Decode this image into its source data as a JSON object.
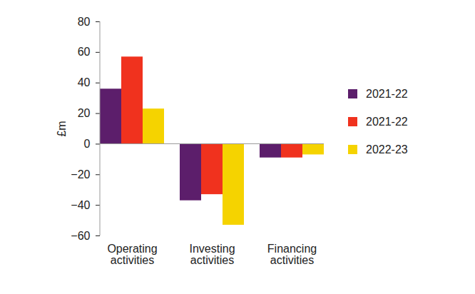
{
  "chart_data": {
    "type": "bar",
    "categories": [
      "Operating activities",
      "Investing activities",
      "Financing activities"
    ],
    "series": [
      {
        "name": "2021-22",
        "color": "#5c1e6b",
        "values": [
          36,
          -37,
          -9
        ]
      },
      {
        "name": "2021-22",
        "color": "#f0321e",
        "values": [
          57,
          -33,
          -9
        ]
      },
      {
        "name": "2022-23",
        "color": "#f5d300",
        "values": [
          23,
          -53,
          -7
        ]
      }
    ],
    "y_label": "£m",
    "ylim": [
      -60,
      80
    ],
    "yticks": [
      -60,
      -40,
      -20,
      0,
      20,
      40,
      60,
      80
    ],
    "grid": false,
    "legend": "right"
  }
}
